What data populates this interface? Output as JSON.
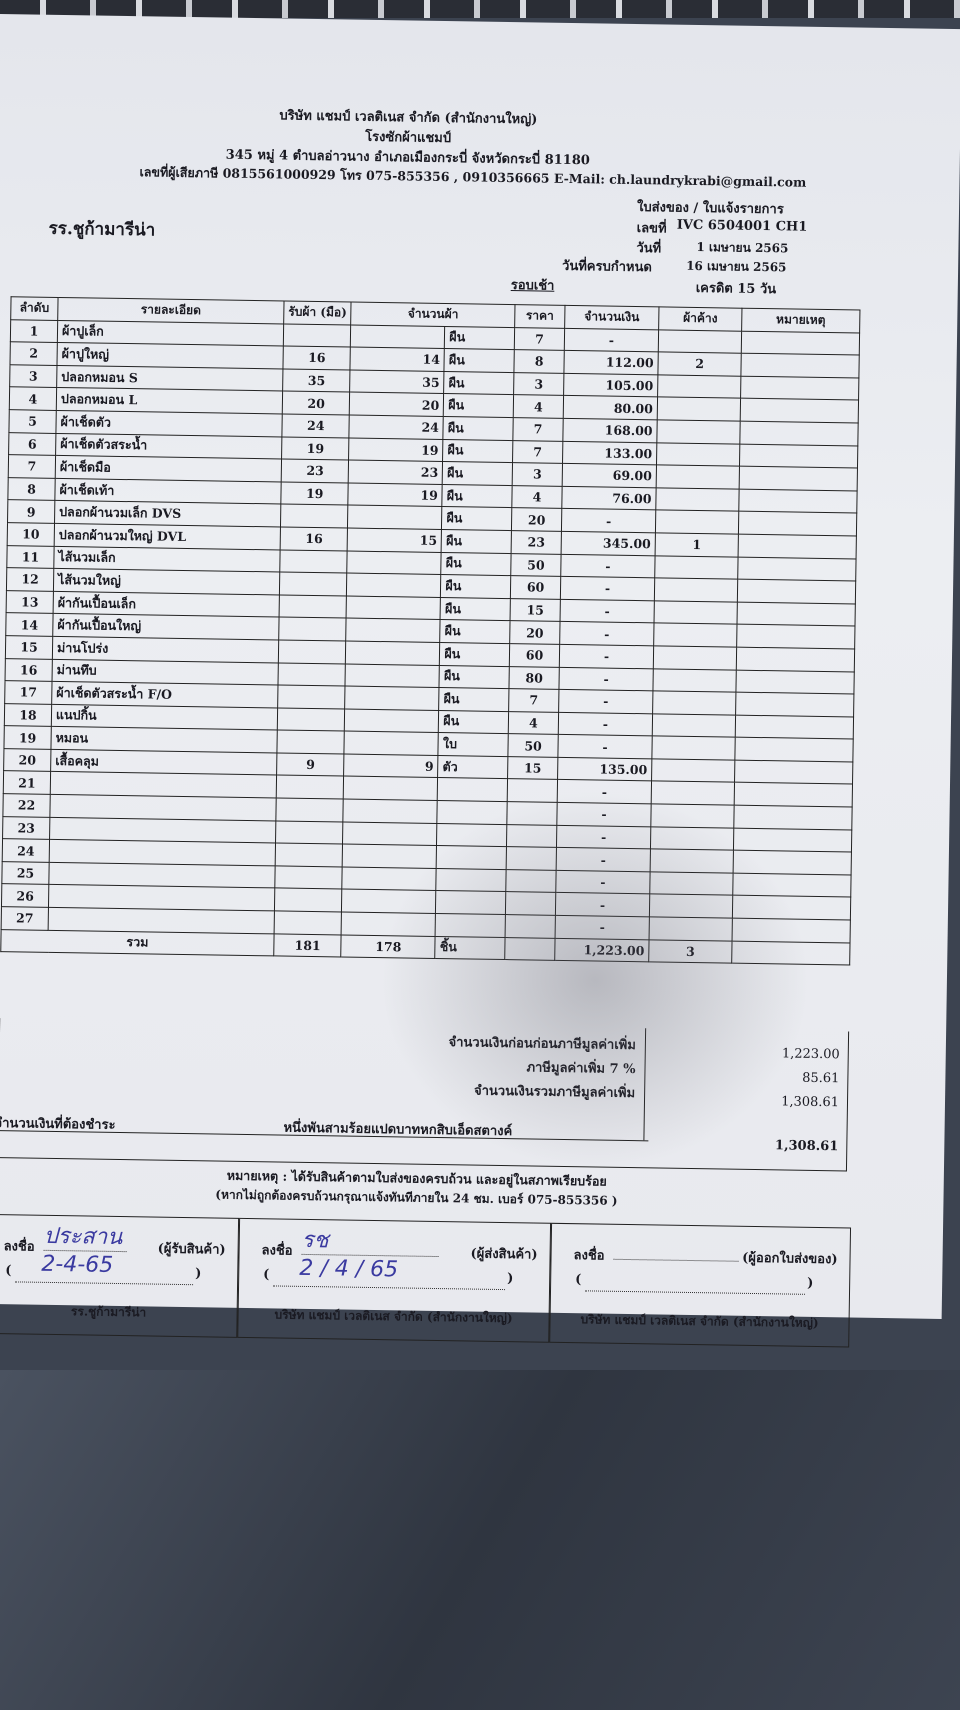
{
  "company": {
    "name": "บริษัท แชมป์ เวลติเนส จำกัด (สำนักงานใหญ่)",
    "plant": "โรงซักผ้าแชมป์",
    "address": "345 หมู่ 4 ตำบลอ่าวนาง อำเภอเมืองกระบี่ จังหวัดกระบี่ 81180",
    "contact": "เลขที่ผู้เสียภาษี 0815561000929 โทร 075-855356 , 0910356665 E-Mail: ch.laundrykrabi@gmail.com"
  },
  "doc": {
    "type": "ใบส่งของ / ใบแจ้งรายการ",
    "customer": "รร.ชูก้ามารีน่า",
    "no_label": "เลขที่",
    "no": "IVC 6504001 CH1",
    "date_label": "วันที่",
    "date": "1 เมษายน 2565",
    "due_label": "วันที่ครบกำหนด",
    "due": "16 เมษายน 2565",
    "round": "รอบเช้า",
    "credit": "เครดิต 15 วัน"
  },
  "table": {
    "headers": [
      "ลำดับ",
      "รายละเอียด",
      "รับผ้า (มือ)",
      "จำนวนผ้า",
      "ราคา",
      "จำนวนเงิน",
      "ผ้าค้าง",
      "หมายเหตุ"
    ],
    "rows": [
      [
        "1",
        "ผ้าปูเล็ก",
        "",
        "",
        "ผืน",
        "7",
        "-",
        ""
      ],
      [
        "2",
        "ผ้าปูใหญ่",
        "16",
        "14",
        "ผืน",
        "8",
        "112.00",
        "2"
      ],
      [
        "3",
        "ปลอกหมอน S",
        "35",
        "35",
        "ผืน",
        "3",
        "105.00",
        ""
      ],
      [
        "4",
        "ปลอกหมอน L",
        "20",
        "20",
        "ผืน",
        "4",
        "80.00",
        ""
      ],
      [
        "5",
        "ผ้าเช็ดตัว",
        "24",
        "24",
        "ผืน",
        "7",
        "168.00",
        ""
      ],
      [
        "6",
        "ผ้าเช็ดตัวสระน้ำ",
        "19",
        "19",
        "ผืน",
        "7",
        "133.00",
        ""
      ],
      [
        "7",
        "ผ้าเช็ดมือ",
        "23",
        "23",
        "ผืน",
        "3",
        "69.00",
        ""
      ],
      [
        "8",
        "ผ้าเช็ดเท้า",
        "19",
        "19",
        "ผืน",
        "4",
        "76.00",
        ""
      ],
      [
        "9",
        "ปลอกผ้านวมเล็ก DVS",
        "",
        "",
        "ผืน",
        "20",
        "-",
        ""
      ],
      [
        "10",
        "ปลอกผ้านวมใหญ่ DVL",
        "16",
        "15",
        "ผืน",
        "23",
        "345.00",
        "1"
      ],
      [
        "11",
        "ไส้นวมเล็ก",
        "",
        "",
        "ผืน",
        "50",
        "-",
        ""
      ],
      [
        "12",
        "ไส้นวมใหญ่",
        "",
        "",
        "ผืน",
        "60",
        "-",
        ""
      ],
      [
        "13",
        "ผ้ากันเปื้อนเล็ก",
        "",
        "",
        "ผืน",
        "15",
        "-",
        ""
      ],
      [
        "14",
        "ผ้ากันเปื้อนใหญ่",
        "",
        "",
        "ผืน",
        "20",
        "-",
        ""
      ],
      [
        "15",
        "ม่านโปร่ง",
        "",
        "",
        "ผืน",
        "60",
        "-",
        ""
      ],
      [
        "16",
        "ม่านทึบ",
        "",
        "",
        "ผืน",
        "80",
        "-",
        ""
      ],
      [
        "17",
        "ผ้าเช็ดตัวสระน้ำ F/O",
        "",
        "",
        "ผืน",
        "7",
        "-",
        ""
      ],
      [
        "18",
        "แนปกิ้น",
        "",
        "",
        "ผืน",
        "4",
        "-",
        ""
      ],
      [
        "19",
        "หมอน",
        "",
        "",
        "ใบ",
        "50",
        "-",
        ""
      ],
      [
        "20",
        "เสื้อคลุม",
        "9",
        "9",
        "ตัว",
        "15",
        "135.00",
        ""
      ],
      [
        "21",
        "",
        "",
        "",
        "",
        "",
        "-",
        ""
      ],
      [
        "22",
        "",
        "",
        "",
        "",
        "",
        "-",
        ""
      ],
      [
        "23",
        "",
        "",
        "",
        "",
        "",
        "-",
        ""
      ],
      [
        "24",
        "",
        "",
        "",
        "",
        "",
        "-",
        ""
      ],
      [
        "25",
        "",
        "",
        "",
        "",
        "",
        "-",
        ""
      ],
      [
        "26",
        "",
        "",
        "",
        "",
        "",
        "-",
        ""
      ],
      [
        "27",
        "",
        "",
        "",
        "",
        "",
        "-",
        ""
      ]
    ],
    "total": {
      "label": "รวม",
      "received": "181",
      "qty": "178",
      "unit": "ชิ้น",
      "amount": "1,223.00",
      "pending": "3"
    }
  },
  "summary": {
    "before_vat_label": "จำนวนเงินก่อนก่อนภาษีมูลค่าเพิ่ม",
    "before_vat": "1,223.00",
    "vat_label": "ภาษีมูลค่าเพิ่ม 7 %",
    "vat": "85.61",
    "total_label": "จำนวนเงินรวมภาษีมูลค่าเพิ่ม",
    "total": "1,308.61",
    "due_label": "จำนวนเงินที่ต้องชำระ",
    "words": "หนึ่งพันสามร้อยแปดบาทหกสิบเอ็ดสตางค์",
    "due": "1,308.61"
  },
  "note": {
    "line1": "หมายเหตุ : ได้รับสินค้าตามใบส่งของครบถ้วน และอยู่ในสภาพเรียบร้อย",
    "line2": "(หากไม่ถูกต้องครบถ้วนกรุณาแจ้งทันทีภายใน 24 ชม. เบอร์ 075-855356 )"
  },
  "signatures": [
    {
      "label": "ลงชื่อ",
      "role": "(ผู้รับสินค้า)",
      "sig": "ประสาน",
      "date": "2-4-65",
      "org": "รร.ชูก้ามารีน่า"
    },
    {
      "label": "ลงชื่อ",
      "role": "(ผู้ส่งสินค้า)",
      "sig": "รช",
      "date": "2 / 4 / 65",
      "org": "บริษัท แชมป์ เวลติเนส จำกัด (สำนักงานใหญ่)"
    },
    {
      "label": "ลงชื่อ",
      "role": "(ผู้ออกใบส่งของ)",
      "sig": "",
      "date": "",
      "org": "บริษัท แชมป์ เวลติเนส จำกัด (สำนักงานใหญ่)"
    }
  ]
}
